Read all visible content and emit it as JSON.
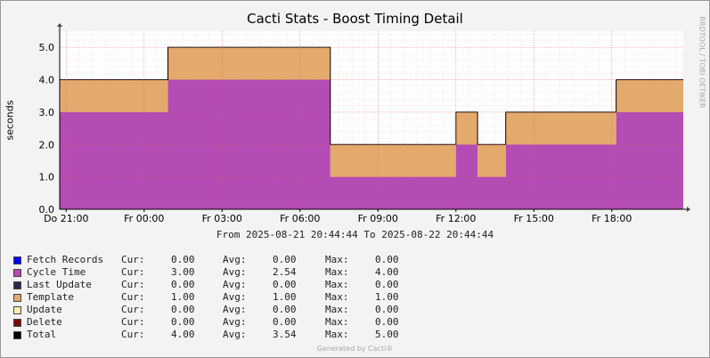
{
  "chart_data": {
    "type": "area",
    "stacked": true,
    "title": "Cacti Stats - Boost Timing Detail",
    "ylabel": "seconds",
    "ylim": [
      0,
      5.5
    ],
    "yticks": [
      "0.0",
      "1.0",
      "2.0",
      "3.0",
      "4.0",
      "5.0"
    ],
    "x": [
      "Do 20:45",
      "Do 21:00",
      "Fr 00:00",
      "Fr 00:45",
      "Fr 00:55",
      "Fr 07:00",
      "Fr 07:10",
      "Fr 11:45",
      "Fr 12:00",
      "Fr 12:50",
      "Fr 13:55",
      "Fr 14:00",
      "Fr 18:00",
      "Fr 18:10",
      "Fr 20:45"
    ],
    "xlim_labels": [
      "Do 21:00",
      "Fr 00:00",
      "Fr 03:00",
      "Fr 06:00",
      "Fr 09:00",
      "Fr 12:00",
      "Fr 15:00",
      "Fr 18:00"
    ],
    "grid": true,
    "series": [
      {
        "name": "Fetch Records",
        "color": "#0000ff",
        "values": [
          0,
          0,
          0,
          0,
          0,
          0,
          0,
          0,
          0,
          0,
          0,
          0,
          0,
          0,
          0
        ]
      },
      {
        "name": "Cycle Time",
        "color": "#b34cb3",
        "values": [
          3,
          3,
          3,
          3,
          4,
          4,
          1,
          1,
          2,
          1,
          2,
          2,
          2,
          3,
          3
        ]
      },
      {
        "name": "Last Update",
        "color": "#2a2a4a",
        "values": [
          0,
          0,
          0,
          0,
          0,
          0,
          0,
          0,
          0,
          0,
          0,
          0,
          0,
          0,
          0
        ]
      },
      {
        "name": "Template",
        "color": "#e3a96d",
        "values": [
          1,
          1,
          1,
          1,
          1,
          1,
          1,
          1,
          1,
          1,
          1,
          1,
          1,
          1,
          1
        ]
      },
      {
        "name": "Update",
        "color": "#f5f0b0",
        "values": [
          0,
          0,
          0,
          0,
          0,
          0,
          0,
          0,
          0,
          0,
          0,
          0,
          0,
          0,
          0
        ]
      },
      {
        "name": "Delete",
        "color": "#7a0a0a",
        "values": [
          0,
          0,
          0,
          0,
          0,
          0,
          0,
          0,
          0,
          0,
          0,
          0,
          0,
          0,
          0
        ]
      },
      {
        "name": "Total",
        "color": "#000000",
        "values": [
          4,
          4,
          4,
          4,
          5,
          5,
          2,
          2,
          3,
          2,
          3,
          3,
          3,
          4,
          4
        ]
      }
    ]
  },
  "header": {
    "daterange": "From 2025-08-21 20:44:44 To 2025-08-22 20:44:44",
    "watermark": "RRDTOOL / TOBI OETIKER",
    "footer": "Generated by Cacti®"
  },
  "legend": [
    {
      "name": "Fetch Records",
      "color": "#0000ff",
      "cur_label": "Cur:",
      "cur": "0.00",
      "avg_label": "Avg:",
      "avg": "0.00",
      "max_label": "Max:",
      "max": "0.00"
    },
    {
      "name": "Cycle Time",
      "color": "#b34cb3",
      "cur_label": "Cur:",
      "cur": "3.00",
      "avg_label": "Avg:",
      "avg": "2.54",
      "max_label": "Max:",
      "max": "4.00"
    },
    {
      "name": "Last Update",
      "color": "#2a2a4a",
      "cur_label": "Cur:",
      "cur": "0.00",
      "avg_label": "Avg:",
      "avg": "0.00",
      "max_label": "Max:",
      "max": "0.00"
    },
    {
      "name": "Template",
      "color": "#e3a96d",
      "cur_label": "Cur:",
      "cur": "1.00",
      "avg_label": "Avg:",
      "avg": "1.00",
      "max_label": "Max:",
      "max": "1.00"
    },
    {
      "name": "Update",
      "color": "#f5f0b0",
      "cur_label": "Cur:",
      "cur": "0.00",
      "avg_label": "Avg:",
      "avg": "0.00",
      "max_label": "Max:",
      "max": "0.00"
    },
    {
      "name": "Delete",
      "color": "#7a0a0a",
      "cur_label": "Cur:",
      "cur": "0.00",
      "avg_label": "Avg:",
      "avg": "0.00",
      "max_label": "Max:",
      "max": "0.00"
    },
    {
      "name": "Total",
      "color": "#000000",
      "cur_label": "Cur:",
      "cur": "4.00",
      "avg_label": "Avg:",
      "avg": "3.54",
      "max_label": "Max:",
      "max": "5.00"
    }
  ]
}
